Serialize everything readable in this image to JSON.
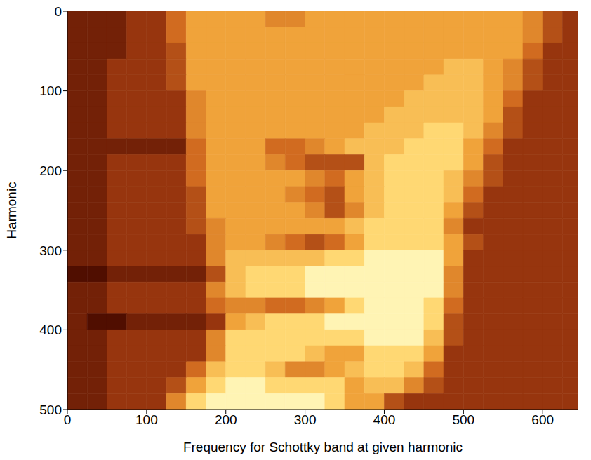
{
  "chart_data": {
    "type": "heatmap",
    "x_label": "Frequency for Schottky band at given harmonic",
    "y_label": "Harmonic",
    "xlim": [
      0,
      645
    ],
    "ylim": [
      0,
      500
    ],
    "xticks": [
      0,
      100,
      200,
      300,
      400,
      500,
      600
    ],
    "yticks": [
      0,
      100,
      200,
      300,
      400,
      500
    ],
    "x_edges": [
      0,
      25,
      50,
      75,
      100,
      125,
      150,
      175,
      200,
      225,
      250,
      275,
      300,
      325,
      350,
      375,
      400,
      425,
      450,
      475,
      500,
      525,
      550,
      575,
      600,
      625,
      645
    ],
    "y_edges": [
      0,
      20,
      40,
      60,
      80,
      100,
      120,
      140,
      160,
      180,
      200,
      220,
      240,
      260,
      280,
      300,
      320,
      340,
      360,
      380,
      400,
      420,
      440,
      460,
      480,
      500
    ],
    "zlim": [
      0,
      9
    ],
    "cells": [
      [
        1,
        1,
        1,
        2,
        2,
        4,
        6,
        6,
        6,
        6,
        5,
        5,
        6,
        6,
        6,
        6,
        6,
        6,
        6,
        6,
        6,
        6,
        6,
        5,
        3,
        2
      ],
      [
        1,
        1,
        1,
        2,
        2,
        4,
        6,
        6,
        6,
        6,
        6,
        6,
        6,
        6,
        6,
        6,
        6,
        6,
        6,
        6,
        6,
        6,
        6,
        5,
        3,
        2
      ],
      [
        1,
        1,
        1,
        2,
        2,
        3,
        6,
        6,
        6,
        6,
        6,
        6,
        6,
        6,
        6,
        6,
        6,
        6,
        6,
        6,
        6,
        6,
        6,
        4,
        2,
        2
      ],
      [
        1,
        1,
        2,
        2,
        2,
        3,
        6,
        6,
        6,
        6,
        6,
        6,
        6,
        6,
        6,
        6,
        6,
        6,
        6,
        7,
        7,
        6,
        5,
        3,
        2,
        2
      ],
      [
        1,
        1,
        2,
        2,
        2,
        3,
        6,
        6,
        6,
        6,
        6,
        6,
        6,
        6,
        6,
        6,
        6,
        6,
        7,
        7,
        7,
        6,
        5,
        3,
        2,
        2
      ],
      [
        1,
        1,
        2,
        2,
        2,
        2,
        5,
        6,
        6,
        6,
        6,
        6,
        6,
        6,
        6,
        6,
        6,
        7,
        7,
        7,
        7,
        6,
        4,
        2,
        2,
        2
      ],
      [
        1,
        1,
        2,
        2,
        2,
        2,
        5,
        6,
        6,
        6,
        6,
        6,
        6,
        6,
        6,
        6,
        7,
        7,
        7,
        7,
        7,
        6,
        3,
        2,
        2,
        2
      ],
      [
        1,
        1,
        2,
        2,
        2,
        2,
        5,
        6,
        6,
        6,
        6,
        6,
        6,
        6,
        6,
        7,
        7,
        7,
        8,
        8,
        7,
        5,
        3,
        2,
        2,
        2
      ],
      [
        1,
        1,
        1,
        1,
        1,
        1,
        4,
        6,
        6,
        6,
        4,
        4,
        5,
        6,
        7,
        7,
        7,
        8,
        8,
        8,
        6,
        4,
        2,
        2,
        2,
        2
      ],
      [
        1,
        1,
        2,
        2,
        2,
        2,
        4,
        6,
        6,
        6,
        5,
        4,
        3,
        3,
        3,
        7,
        8,
        8,
        8,
        8,
        6,
        3,
        2,
        2,
        2,
        2
      ],
      [
        1,
        1,
        2,
        2,
        2,
        2,
        4,
        6,
        6,
        6,
        6,
        6,
        5,
        4,
        6,
        7,
        8,
        8,
        8,
        7,
        5,
        3,
        2,
        2,
        2,
        2
      ],
      [
        1,
        1,
        2,
        2,
        2,
        2,
        3,
        6,
        6,
        6,
        6,
        5,
        4,
        3,
        6,
        7,
        8,
        8,
        8,
        7,
        4,
        2,
        2,
        2,
        2,
        2
      ],
      [
        1,
        1,
        2,
        2,
        2,
        2,
        3,
        6,
        6,
        6,
        6,
        6,
        5,
        3,
        5,
        7,
        8,
        8,
        8,
        6,
        3,
        2,
        2,
        2,
        2,
        2
      ],
      [
        1,
        1,
        2,
        2,
        2,
        2,
        3,
        5,
        6,
        6,
        6,
        6,
        6,
        6,
        7,
        8,
        8,
        8,
        8,
        5,
        2,
        2,
        2,
        2,
        2,
        2
      ],
      [
        1,
        1,
        2,
        2,
        2,
        2,
        2,
        5,
        6,
        6,
        5,
        4,
        3,
        4,
        6,
        8,
        8,
        8,
        8,
        6,
        3,
        2,
        2,
        2,
        2,
        2
      ],
      [
        1,
        1,
        2,
        2,
        2,
        2,
        2,
        5,
        7,
        7,
        7,
        7,
        7,
        8,
        8,
        9,
        9,
        9,
        9,
        6,
        2,
        2,
        2,
        2,
        2,
        2
      ],
      [
        0,
        0,
        1,
        1,
        1,
        1,
        1,
        3,
        7,
        8,
        8,
        8,
        9,
        9,
        9,
        9,
        9,
        9,
        9,
        5,
        2,
        2,
        2,
        2,
        2,
        2
      ],
      [
        1,
        1,
        2,
        2,
        2,
        2,
        2,
        5,
        7,
        8,
        8,
        8,
        9,
        9,
        9,
        9,
        9,
        9,
        9,
        5,
        2,
        2,
        2,
        2,
        2,
        2
      ],
      [
        1,
        1,
        2,
        2,
        2,
        2,
        2,
        4,
        5,
        5,
        4,
        4,
        5,
        6,
        8,
        9,
        9,
        9,
        8,
        4,
        2,
        2,
        2,
        2,
        2,
        2
      ],
      [
        1,
        0,
        0,
        1,
        1,
        1,
        1,
        2,
        6,
        7,
        8,
        8,
        8,
        9,
        9,
        9,
        9,
        9,
        8,
        3,
        2,
        2,
        2,
        2,
        2,
        2
      ],
      [
        1,
        1,
        2,
        2,
        2,
        2,
        2,
        5,
        8,
        8,
        8,
        8,
        8,
        8,
        8,
        9,
        9,
        9,
        7,
        3,
        2,
        2,
        2,
        2,
        2,
        2
      ],
      [
        1,
        1,
        2,
        2,
        2,
        2,
        2,
        5,
        8,
        8,
        8,
        8,
        7,
        6,
        6,
        8,
        8,
        8,
        6,
        2,
        2,
        2,
        2,
        2,
        2,
        2
      ],
      [
        1,
        1,
        2,
        2,
        2,
        2,
        4,
        7,
        8,
        8,
        7,
        5,
        5,
        6,
        7,
        8,
        8,
        7,
        4,
        2,
        2,
        2,
        2,
        2,
        2,
        2
      ],
      [
        1,
        1,
        2,
        2,
        2,
        3,
        6,
        8,
        9,
        9,
        8,
        8,
        8,
        8,
        6,
        7,
        7,
        5,
        3,
        2,
        2,
        2,
        2,
        2,
        2,
        2
      ],
      [
        1,
        1,
        2,
        2,
        2,
        5,
        8,
        9,
        9,
        9,
        9,
        9,
        9,
        8,
        6,
        6,
        3,
        2,
        2,
        2,
        2,
        2,
        2,
        2,
        2,
        2
      ]
    ]
  }
}
